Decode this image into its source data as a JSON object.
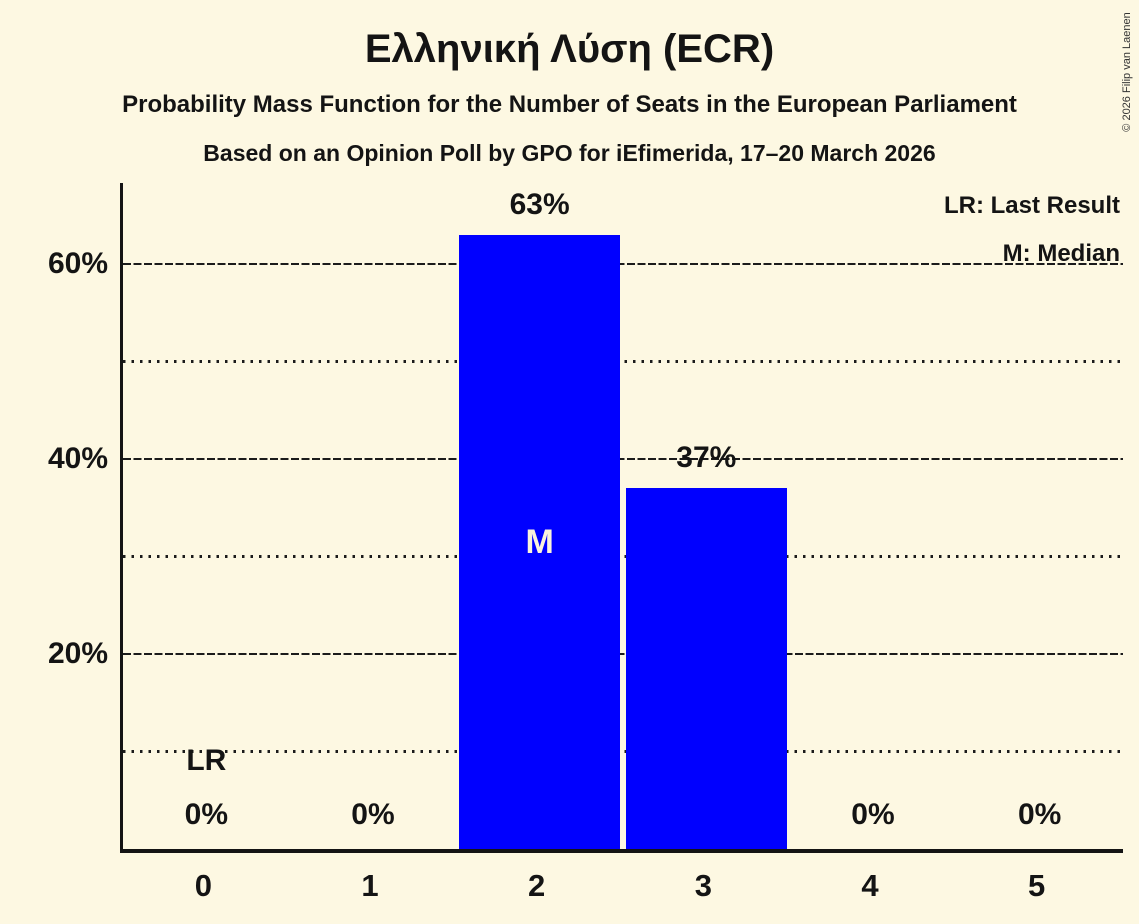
{
  "title": "Ελληνική Λύση (ECR)",
  "subtitle": "Probability Mass Function for the Number of Seats in the European Parliament",
  "poll_line": "Based on an Opinion Poll by GPO for iEfimerida, 17–20 March 2026",
  "copyright": "© 2026 Filip van Laenen",
  "legend": {
    "lr": "LR: Last Result",
    "m": "M: Median"
  },
  "colors": {
    "background": "#fdf8e2",
    "bar": "#0000ff",
    "text": "#141414",
    "median_marker_text": "#faf3dc"
  },
  "chart_data": {
    "type": "bar",
    "title": "Ελληνική Λύση (ECR)",
    "xlabel": "",
    "ylabel": "",
    "categories": [
      "0",
      "1",
      "2",
      "3",
      "4",
      "5"
    ],
    "values": [
      0,
      0,
      63,
      37,
      0,
      0
    ],
    "bar_labels": [
      "0%",
      "0%",
      "63%",
      "37%",
      "0%",
      "0%"
    ],
    "ylim": [
      0,
      68.3
    ],
    "y_ticks": [
      {
        "pct": 20,
        "label": "20%"
      },
      {
        "pct": 40,
        "label": "40%"
      },
      {
        "pct": 60,
        "label": "60%"
      }
    ],
    "gridlines": [
      {
        "pct": 10,
        "style": "dotted"
      },
      {
        "pct": 20,
        "style": "dashed"
      },
      {
        "pct": 30,
        "style": "dotted"
      },
      {
        "pct": 40,
        "style": "dashed"
      },
      {
        "pct": 50,
        "style": "dotted"
      },
      {
        "pct": 60,
        "style": "dashed"
      }
    ],
    "median": {
      "category": "2",
      "label": "M"
    },
    "last_result": {
      "category": "0",
      "label": "LR"
    },
    "grid": "horizontal",
    "legend_position": "top-right"
  }
}
